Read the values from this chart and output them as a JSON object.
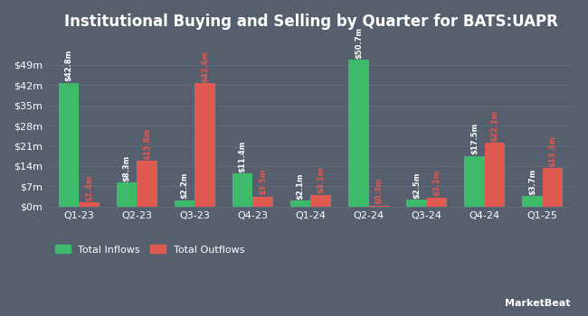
{
  "title": "Institutional Buying and Selling by Quarter for BATS:UAPR",
  "quarters": [
    "Q1-23",
    "Q2-23",
    "Q3-23",
    "Q4-23",
    "Q1-24",
    "Q2-24",
    "Q3-24",
    "Q4-24",
    "Q1-25"
  ],
  "inflows": [
    42.8,
    8.3,
    2.2,
    11.4,
    2.1,
    50.7,
    2.5,
    17.5,
    3.7
  ],
  "outflows": [
    1.4,
    15.8,
    42.6,
    3.5,
    4.1,
    0.4,
    3.2,
    22.1,
    13.3
  ],
  "inflow_labels": [
    "$42.8m",
    "$8.3m",
    "$2.2m",
    "$11.4m",
    "$2.1m",
    "$50.7m",
    "$2.5m",
    "$17.5m",
    "$3.7m"
  ],
  "outflow_labels": [
    "$1.4m",
    "$15.8m",
    "$42.6m",
    "$3.5m",
    "$4.1m",
    "$0.4m",
    "$3.2m",
    "$22.1m",
    "$13.3m"
  ],
  "inflow_color": "#3dbb6a",
  "outflow_color": "#e05a52",
  "background_color": "#555f6e",
  "text_color": "#ffffff",
  "grid_color": "#636d7c",
  "yticks": [
    0,
    7,
    14,
    21,
    28,
    35,
    42,
    49
  ],
  "ytick_labels": [
    "$0m",
    "$7m",
    "$14m",
    "$21m",
    "$28m",
    "$35m",
    "$42m",
    "$49m"
  ],
  "ylim": [
    0,
    58
  ],
  "title_fontsize": 12,
  "label_fontsize": 6.0,
  "tick_fontsize": 8,
  "legend_fontsize": 8,
  "bar_width": 0.35
}
